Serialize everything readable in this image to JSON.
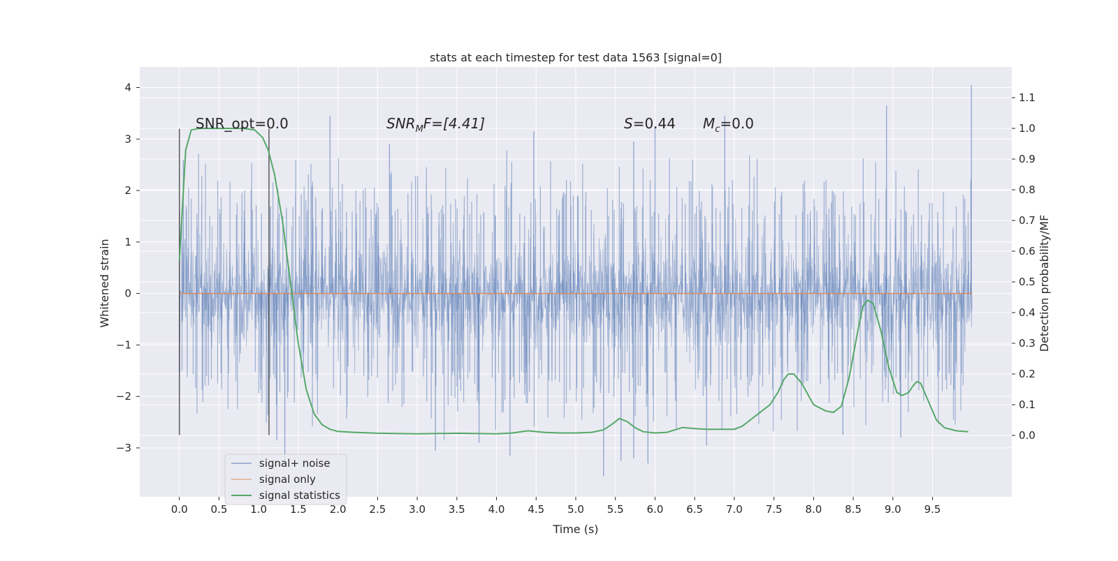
{
  "chart_data": {
    "type": "line",
    "title": "stats at each timestep for test data 1563 [signal=0]",
    "xlabel": "Time (s)",
    "ylabel": "Whitened strain",
    "y2label": "Detection probability/MF",
    "xlim": [
      -0.5,
      10.5
    ],
    "ylim": [
      -3.95,
      4.4
    ],
    "y2lim": [
      -0.2,
      1.2
    ],
    "x_ticks": [
      "0.0",
      "0.5",
      "1.0",
      "1.5",
      "2.0",
      "2.5",
      "3.0",
      "3.5",
      "4.0",
      "4.5",
      "5.0",
      "5.5",
      "6.0",
      "6.5",
      "7.0",
      "7.5",
      "8.0",
      "8.5",
      "9.0",
      "9.5"
    ],
    "y_ticks": [
      "4",
      "3",
      "2",
      "1",
      "0",
      "−1",
      "−2",
      "−3"
    ],
    "y2_ticks": [
      "1.1",
      "1.0",
      "0.9",
      "0.8",
      "0.7",
      "0.6",
      "0.5",
      "0.4",
      "0.3",
      "0.2",
      "0.1",
      "0.0"
    ],
    "grid": true,
    "legend_position": "bottom-left",
    "colors": {
      "noise": "#4c72b0",
      "signal": "#dd8452",
      "stats": "#55a868",
      "background": "#eaeaf2",
      "markers": "#333333"
    },
    "annotations": {
      "snr_opt": "SNR_opt=0.0",
      "snr_mf_base": "SNR",
      "snr_mf_sub": "M",
      "snr_mf_rest": "F=[4.41]",
      "s_name": "S",
      "s_value": "=0.44",
      "mc_base": "M",
      "mc_sub": "c",
      "mc_value": "=0.0"
    },
    "vertical_markers": [
      {
        "x": 0.0,
        "y_bottom": -2.75,
        "y_top": 3.2
      },
      {
        "x": 1.13,
        "y_bottom": -2.75,
        "y_top": 3.2
      }
    ],
    "series": [
      {
        "name": "signal+ noise",
        "axis": "left",
        "description": "whitened noisy strain, approx 0.0-10.0 s",
        "band_min": -1.55,
        "band_max": 1.45,
        "extreme_peaks": [
          {
            "x": 1.9,
            "y": 3.45
          },
          {
            "x": 4.47,
            "y": 3.15
          },
          {
            "x": 6.0,
            "y": 3.25
          },
          {
            "x": 6.88,
            "y": 3.45
          },
          {
            "x": 8.92,
            "y": 3.65
          },
          {
            "x": 9.99,
            "y": 4.05
          },
          {
            "x": 0.05,
            "y": 2.6
          },
          {
            "x": 2.65,
            "y": 2.9
          },
          {
            "x": 5.73,
            "y": 2.95
          }
        ],
        "extreme_troughs": [
          {
            "x": 1.33,
            "y": -3.3
          },
          {
            "x": 3.23,
            "y": -3.05
          },
          {
            "x": 4.17,
            "y": -3.15
          },
          {
            "x": 5.35,
            "y": -3.55
          },
          {
            "x": 5.57,
            "y": -3.25
          },
          {
            "x": 5.73,
            "y": -3.2
          },
          {
            "x": 5.91,
            "y": -3.3
          },
          {
            "x": 6.65,
            "y": -2.95
          },
          {
            "x": 1.23,
            "y": -2.85
          },
          {
            "x": 3.78,
            "y": -2.9
          },
          {
            "x": 8.37,
            "y": -2.75
          },
          {
            "x": 9.1,
            "y": -2.8
          }
        ]
      },
      {
        "name": "signal only",
        "axis": "left",
        "x": [
          0.0,
          10.0
        ],
        "values": [
          0.0,
          0.0
        ]
      },
      {
        "name": "signal statistics",
        "axis": "right",
        "x": [
          0.0,
          0.08,
          0.15,
          0.25,
          0.4,
          0.6,
          0.8,
          0.95,
          1.05,
          1.12,
          1.2,
          1.3,
          1.4,
          1.5,
          1.6,
          1.7,
          1.8,
          1.9,
          2.0,
          2.2,
          2.5,
          3.0,
          3.5,
          4.0,
          4.2,
          4.4,
          4.6,
          4.8,
          5.0,
          5.2,
          5.35,
          5.45,
          5.55,
          5.65,
          5.75,
          5.85,
          6.0,
          6.15,
          6.25,
          6.35,
          6.5,
          6.65,
          6.8,
          7.0,
          7.1,
          7.2,
          7.3,
          7.45,
          7.55,
          7.62,
          7.68,
          7.75,
          7.85,
          8.0,
          8.15,
          8.25,
          8.35,
          8.45,
          8.55,
          8.62,
          8.68,
          8.75,
          8.85,
          8.95,
          9.05,
          9.12,
          9.2,
          9.25,
          9.3,
          9.35,
          9.45,
          9.55,
          9.65,
          9.8,
          9.95
        ],
        "values": [
          0.57,
          0.93,
          0.995,
          1.0,
          1.0,
          1.0,
          1.0,
          0.995,
          0.97,
          0.93,
          0.85,
          0.7,
          0.5,
          0.3,
          0.15,
          0.07,
          0.035,
          0.02,
          0.013,
          0.01,
          0.007,
          0.005,
          0.007,
          0.005,
          0.008,
          0.015,
          0.01,
          0.008,
          0.008,
          0.01,
          0.018,
          0.035,
          0.055,
          0.045,
          0.025,
          0.012,
          0.008,
          0.01,
          0.018,
          0.026,
          0.022,
          0.02,
          0.02,
          0.02,
          0.03,
          0.05,
          0.07,
          0.1,
          0.14,
          0.18,
          0.2,
          0.2,
          0.17,
          0.1,
          0.08,
          0.075,
          0.095,
          0.19,
          0.33,
          0.42,
          0.44,
          0.43,
          0.34,
          0.22,
          0.14,
          0.13,
          0.14,
          0.16,
          0.175,
          0.17,
          0.11,
          0.05,
          0.025,
          0.015,
          0.012
        ]
      }
    ]
  }
}
